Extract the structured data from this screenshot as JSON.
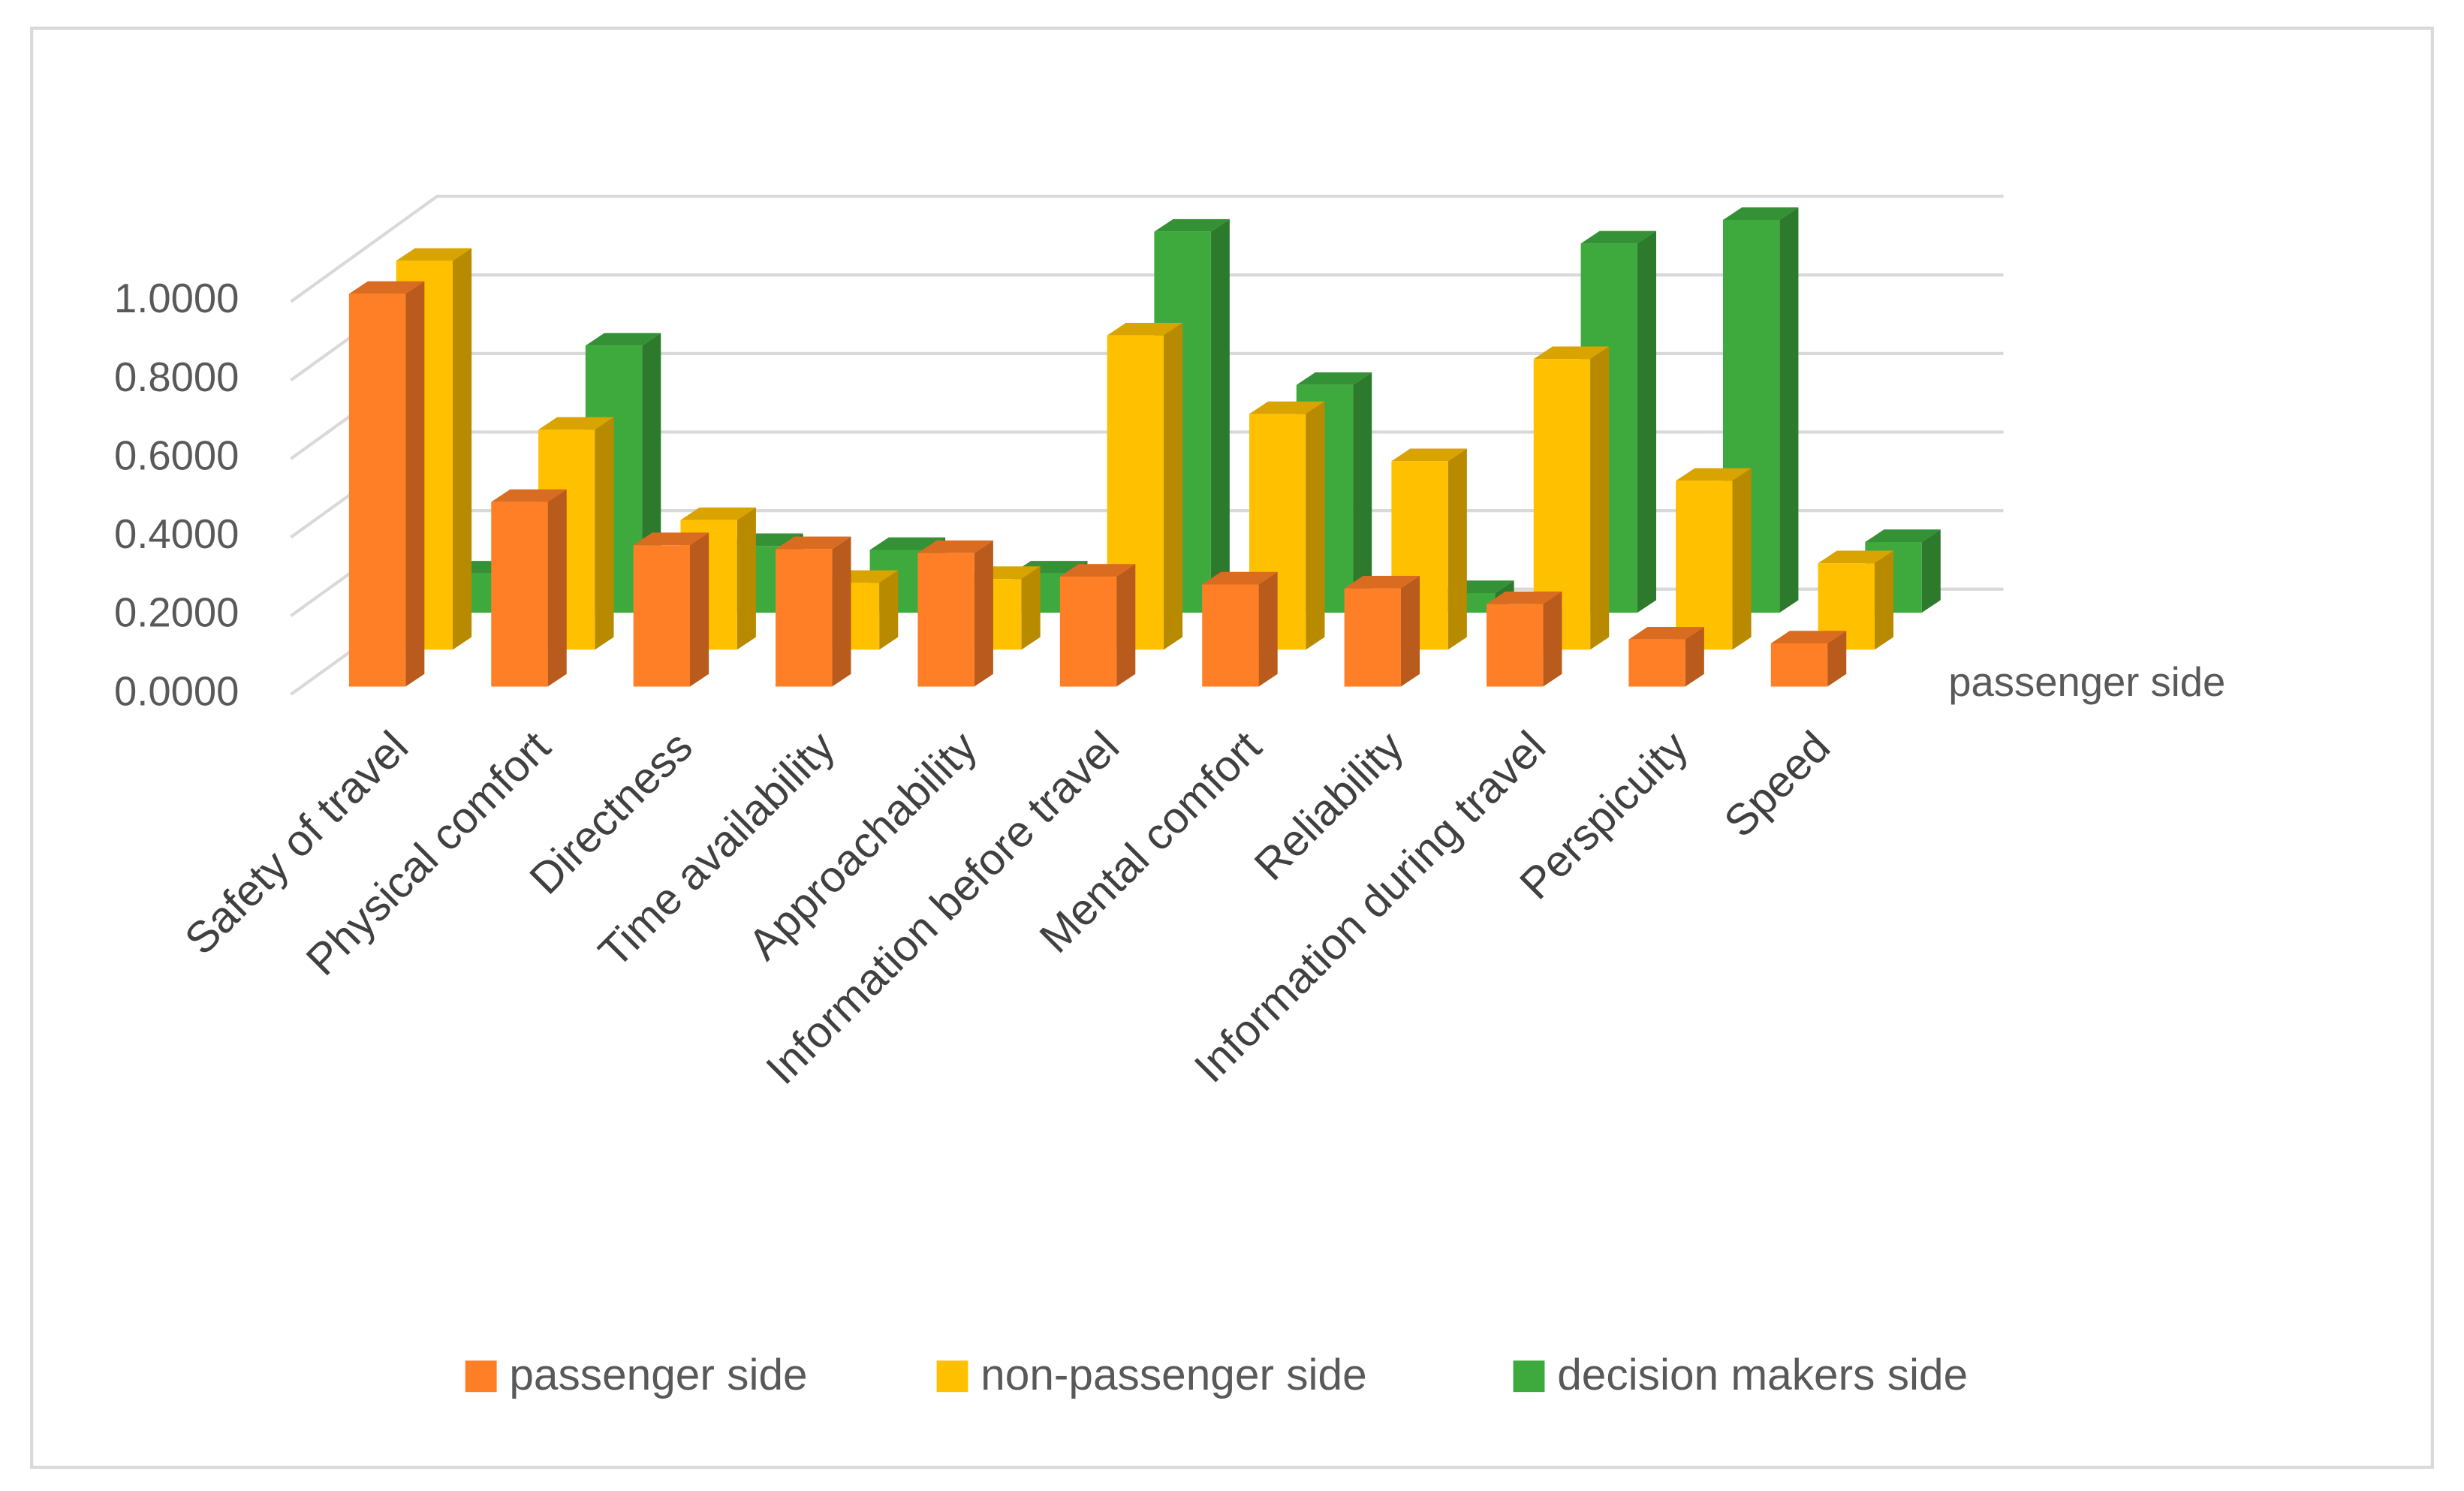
{
  "chart_data": {
    "type": "bar3d",
    "categories": [
      "Safety of travel",
      "Physical comfort",
      "Directness",
      "Time availability",
      "Approachability",
      "Information before travel",
      "Mental comfort",
      "Reliability",
      "Information during travel",
      "Perspicuity",
      "Speed"
    ],
    "series": [
      {
        "name": "passenger side",
        "color": "#ff7f27",
        "values": [
          1.0,
          0.47,
          0.36,
          0.35,
          0.34,
          0.28,
          0.26,
          0.25,
          0.21,
          0.12,
          0.11
        ]
      },
      {
        "name": "non-passenger side",
        "color": "#ffc000",
        "values": [
          0.99,
          0.56,
          0.33,
          0.17,
          0.18,
          0.8,
          0.6,
          0.48,
          0.74,
          0.43,
          0.22
        ]
      },
      {
        "name": "decision makers side",
        "color": "#3eaa3e",
        "values": [
          0.1,
          0.68,
          0.17,
          0.16,
          0.1,
          0.97,
          0.58,
          0.05,
          0.94,
          1.0,
          0.18
        ]
      }
    ],
    "depth_label": "passenger side",
    "ylim": [
      0,
      1.0
    ],
    "yticks": [
      {
        "value": 0,
        "label": "0.0000"
      },
      {
        "value": 0.2,
        "label": "0.2000"
      },
      {
        "value": 0.4,
        "label": "0.4000"
      },
      {
        "value": 0.6,
        "label": "0.6000"
      },
      {
        "value": 0.8,
        "label": "0.8000"
      },
      {
        "value": 1.0,
        "label": "1.0000"
      }
    ],
    "grid": true,
    "legend": "bottom"
  }
}
